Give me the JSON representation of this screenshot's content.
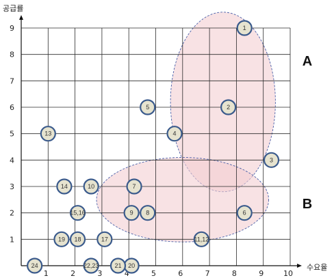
{
  "chart_data": {
    "type": "scatter",
    "xlabel": "수요율",
    "ylabel": "공급률",
    "xlim": [
      0,
      10
    ],
    "ylim": [
      0,
      9
    ],
    "x_ticks": [
      1,
      2,
      3,
      4,
      5,
      6,
      7,
      8,
      9,
      10
    ],
    "y_ticks": [
      1,
      2,
      3,
      4,
      5,
      6,
      7,
      8,
      9
    ],
    "grid": true,
    "points": [
      {
        "label": "1",
        "x": 8.3,
        "y": 9.0
      },
      {
        "label": "2",
        "x": 7.7,
        "y": 6.0
      },
      {
        "label": "3",
        "x": 9.3,
        "y": 4.0
      },
      {
        "label": "4",
        "x": 5.7,
        "y": 5.0
      },
      {
        "label": "5",
        "x": 4.7,
        "y": 6.0
      },
      {
        "label": "6",
        "x": 8.3,
        "y": 2.0
      },
      {
        "label": "7",
        "x": 4.2,
        "y": 3.0
      },
      {
        "label": "8",
        "x": 4.7,
        "y": 2.0
      },
      {
        "label": "9",
        "x": 4.1,
        "y": 2.0
      },
      {
        "label": "10",
        "x": 2.6,
        "y": 3.0
      },
      {
        "label": "11,12",
        "x": 6.7,
        "y": 1.0
      },
      {
        "label": "13",
        "x": 1.0,
        "y": 5.0
      },
      {
        "label": "14",
        "x": 1.6,
        "y": 3.0
      },
      {
        "label": "15,16",
        "x": 2.1,
        "y": 2.0
      },
      {
        "label": "17",
        "x": 3.1,
        "y": 1.0
      },
      {
        "label": "18",
        "x": 2.1,
        "y": 1.0
      },
      {
        "label": "19",
        "x": 1.5,
        "y": 1.0
      },
      {
        "label": "20",
        "x": 4.1,
        "y": 0.0
      },
      {
        "label": "21",
        "x": 3.6,
        "y": 0.0
      },
      {
        "label": "22,23",
        "x": 2.6,
        "y": 0.0
      },
      {
        "label": "24",
        "x": 0.5,
        "y": 0.0
      }
    ],
    "groups": [
      {
        "label": "A",
        "cx": 7.5,
        "cy": 6.2,
        "rx": 1.95,
        "ry": 3.4
      },
      {
        "label": "B",
        "cx": 6.0,
        "cy": 2.5,
        "rx": 3.2,
        "ry": 1.6
      }
    ],
    "colors": {
      "point_fill": "#e6e3cf",
      "point_stroke": "#3a5a8c",
      "region_fill": "#f4cfd2",
      "region_stroke": "#4a5fa8",
      "grid": "#2a2a2a"
    }
  }
}
